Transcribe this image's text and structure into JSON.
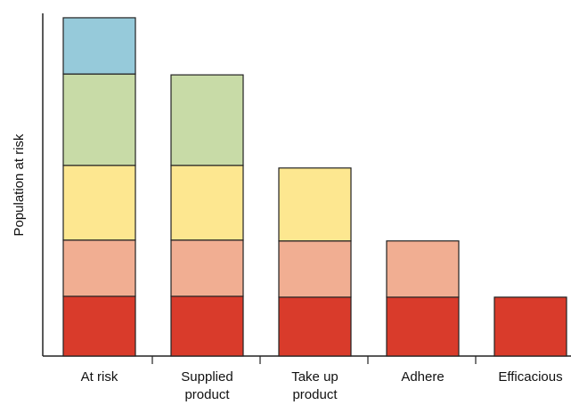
{
  "chart_data": {
    "type": "bar",
    "stacked": true,
    "ylabel": "Population at risk",
    "categories": [
      "At risk",
      "Supplied product",
      "Take up product",
      "Adhere",
      "Efficacious"
    ],
    "category_labels": [
      [
        "At risk"
      ],
      [
        "Supplied",
        "product"
      ],
      [
        "Take up",
        "product"
      ],
      [
        "Adhere"
      ],
      [
        "Efficacious"
      ]
    ],
    "series": [
      {
        "color": "#d93b2b",
        "values": [
          68,
          68,
          67,
          67,
          67
        ]
      },
      {
        "color": "#f1ae92",
        "values": [
          64,
          64,
          64,
          64,
          0
        ]
      },
      {
        "color": "#fde790",
        "values": [
          85,
          85,
          83,
          0,
          0
        ]
      },
      {
        "color": "#c8dba7",
        "values": [
          104,
          103,
          0,
          0,
          0
        ]
      },
      {
        "color": "#96cada",
        "values": [
          64,
          0,
          0,
          0,
          0
        ]
      }
    ],
    "ylim": [
      0,
      390
    ],
    "grid": false,
    "legend": "none"
  }
}
